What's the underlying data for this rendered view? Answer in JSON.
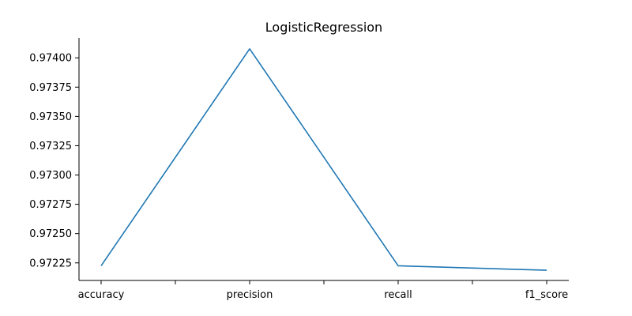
{
  "chart_data": {
    "type": "line",
    "title": "LogisticRegression",
    "xlabel": "",
    "ylabel": "",
    "categories": [
      "accuracy",
      "precision",
      "recall",
      "f1_score"
    ],
    "series": [
      {
        "values": [
          0.972225,
          0.974077,
          0.972225,
          0.972187
        ],
        "color": "#1f77b4"
      }
    ],
    "ylim": [
      0.9721,
      0.97417
    ],
    "yticks": [
      0.97225,
      0.9725,
      0.97275,
      0.973,
      0.97325,
      0.9735,
      0.97375,
      0.974
    ],
    "ytick_labels": [
      "0.97225",
      "0.97250",
      "0.97275",
      "0.97300",
      "0.97325",
      "0.97350",
      "0.97375",
      "0.97400"
    ],
    "x_minor_ticks": [
      0.5,
      1.5,
      2.5
    ],
    "grid": false,
    "spines": [
      "left",
      "bottom"
    ]
  }
}
